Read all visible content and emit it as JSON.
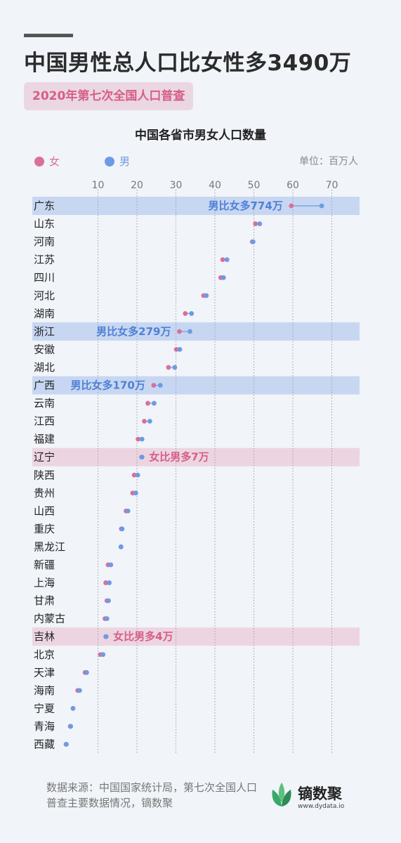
{
  "headline": "中国男性总人口比女性多3490万",
  "badge": "2020年第七次全国人口普查",
  "colors": {
    "female": "#d9709a",
    "male": "#6c9be6",
    "male_highlight": "#c7d7f2",
    "female_highlight": "#ecd5e1"
  },
  "chart_data": {
    "type": "dot",
    "title": "中国各省市男女人口数量",
    "unit": "单位：百万人",
    "legend": [
      "女",
      "男"
    ],
    "x_ticks": [
      10,
      20,
      30,
      40,
      50,
      60,
      70
    ],
    "xlim": [
      0,
      80
    ],
    "grid": "vertical-dotted",
    "rows": [
      {
        "name": "广东",
        "female": 59.6,
        "male": 67.4,
        "highlight": "male",
        "note": "男比女多774万"
      },
      {
        "name": "山东",
        "female": 50.4,
        "male": 51.5
      },
      {
        "name": "河南",
        "female": 49.6,
        "male": 49.8
      },
      {
        "name": "江苏",
        "female": 42.0,
        "male": 43.1
      },
      {
        "name": "四川",
        "female": 41.5,
        "male": 42.2
      },
      {
        "name": "河北",
        "female": 37.1,
        "male": 37.8
      },
      {
        "name": "湖南",
        "female": 32.4,
        "male": 34.0
      },
      {
        "name": "浙江",
        "female": 30.9,
        "male": 33.6,
        "highlight": "male",
        "note": "男比女多279万"
      },
      {
        "name": "安徽",
        "female": 30.1,
        "male": 31.0
      },
      {
        "name": "湖北",
        "female": 28.1,
        "male": 29.7
      },
      {
        "name": "广西",
        "female": 24.3,
        "male": 26.0,
        "highlight": "male",
        "note": "男比女多170万"
      },
      {
        "name": "云南",
        "female": 22.8,
        "male": 24.4
      },
      {
        "name": "江西",
        "female": 21.9,
        "male": 23.3
      },
      {
        "name": "福建",
        "female": 20.3,
        "male": 21.3
      },
      {
        "name": "辽宁",
        "female": 21.3,
        "male": 21.2,
        "highlight": "female",
        "note": "女比男多7万"
      },
      {
        "name": "陕西",
        "female": 19.3,
        "male": 20.2
      },
      {
        "name": "贵州",
        "female": 18.9,
        "male": 19.7
      },
      {
        "name": "山西",
        "female": 17.2,
        "male": 17.7
      },
      {
        "name": "重庆",
        "female": 16.0,
        "male": 16.2
      },
      {
        "name": "黑龙江",
        "female": 15.9,
        "male": 15.9
      },
      {
        "name": "新疆",
        "female": 12.6,
        "male": 13.3
      },
      {
        "name": "上海",
        "female": 12.0,
        "male": 12.9
      },
      {
        "name": "甘肃",
        "female": 12.3,
        "male": 12.7
      },
      {
        "name": "内蒙古",
        "female": 11.8,
        "male": 12.3
      },
      {
        "name": "吉林",
        "female": 12.1,
        "male": 12.0,
        "highlight": "female",
        "note": "女比男多4万"
      },
      {
        "name": "北京",
        "female": 10.6,
        "male": 11.3
      },
      {
        "name": "天津",
        "female": 6.7,
        "male": 7.1
      },
      {
        "name": "海南",
        "female": 4.8,
        "male": 5.3
      },
      {
        "name": "宁夏",
        "female": 3.6,
        "male": 3.6
      },
      {
        "name": "青海",
        "female": 2.9,
        "male": 3.0
      },
      {
        "name": "西藏",
        "female": 1.8,
        "male": 1.9
      }
    ]
  },
  "footer": {
    "source": "数据来源：中国国家统计局，第七次全国人口普查主要数据情况，镝数聚",
    "brand": "镝数聚",
    "url": "www.dydata.io"
  }
}
